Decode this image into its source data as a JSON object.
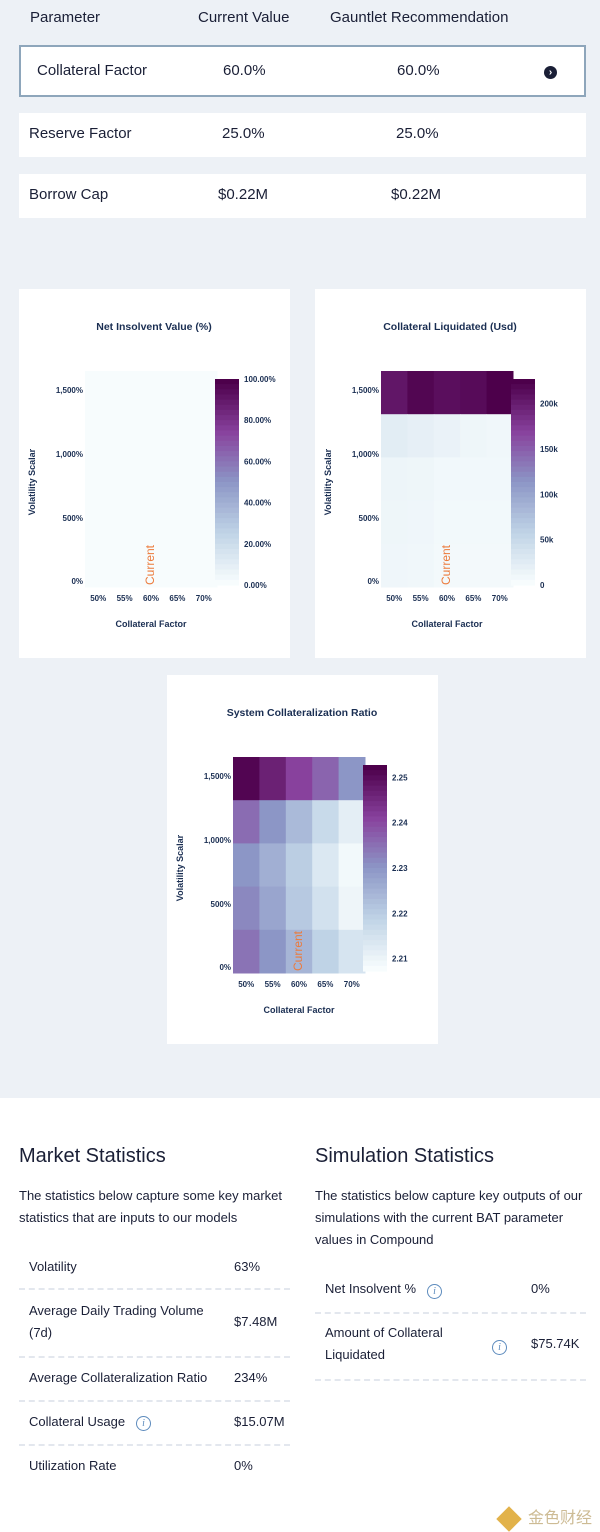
{
  "param_table": {
    "headers": [
      "Parameter",
      "Current Value",
      "Gauntlet Recommendation"
    ],
    "rows": [
      {
        "name": "Collateral Factor",
        "current": "60.0%",
        "recommended": "60.0%"
      },
      {
        "name": "Reserve Factor",
        "current": "25.0%",
        "recommended": "25.0%"
      },
      {
        "name": "Borrow Cap",
        "current": "$0.22M",
        "recommended": "$0.22M"
      }
    ],
    "expand_icon": "chevron-right-icon"
  },
  "chart_data": [
    {
      "type": "heatmap",
      "title": "Net Insolvent Value (%)",
      "xlabel": "Collateral Factor",
      "ylabel": "Volatility Scalar",
      "x_ticks": [
        "50%",
        "55%",
        "60%",
        "65%",
        "70%"
      ],
      "y_ticks": [
        "0%",
        "500%",
        "1,000%",
        "1,500%"
      ],
      "colorbar_ticks": [
        "0.00%",
        "20.00%",
        "40.00%",
        "60.00%",
        "80.00%",
        "100.00%"
      ],
      "colorbar_range": [
        0,
        100
      ],
      "marker_label": "Current",
      "marker_x": "60%",
      "values": [
        [
          0,
          0,
          0,
          0,
          0
        ],
        [
          0,
          0,
          0,
          0,
          0
        ],
        [
          0,
          0,
          0,
          0,
          0
        ],
        [
          0,
          0,
          0,
          0,
          0
        ],
        [
          0,
          0,
          0,
          0,
          0
        ]
      ]
    },
    {
      "type": "heatmap",
      "title": "Collateral Liquidated (Usd)",
      "xlabel": "Collateral Factor",
      "ylabel": "Volatility Scalar",
      "x_ticks": [
        "50%",
        "55%",
        "60%",
        "65%",
        "70%"
      ],
      "y_ticks": [
        "0%",
        "500%",
        "1,000%",
        "1,500%"
      ],
      "colorbar_ticks": [
        "0",
        "50k",
        "100k",
        "150k",
        "200k"
      ],
      "colorbar_range": [
        0,
        235000
      ],
      "marker_label": "Current",
      "marker_x": "60%",
      "values": [
        [
          215000,
          230000,
          222000,
          225000,
          235000
        ],
        [
          22000,
          18000,
          14000,
          9000,
          7000
        ],
        [
          10000,
          9000,
          6000,
          6000,
          6000
        ],
        [
          9000,
          8000,
          5000,
          5000,
          5000
        ],
        [
          8000,
          7000,
          4000,
          4000,
          4000
        ]
      ]
    },
    {
      "type": "heatmap",
      "title": "System Collateralization Ratio",
      "xlabel": "Collateral Factor",
      "ylabel": "Volatility Scalar",
      "x_ticks": [
        "50%",
        "55%",
        "60%",
        "65%",
        "70%"
      ],
      "y_ticks": [
        "0%",
        "500%",
        "1,000%",
        "1,500%"
      ],
      "colorbar_ticks": [
        "2.21",
        "2.22",
        "2.23",
        "2.24",
        "2.25"
      ],
      "colorbar_range": [
        2.205,
        2.253
      ],
      "marker_label": "Current",
      "marker_x": "60%",
      "values": [
        [
          2.252,
          2.247,
          2.241,
          2.236,
          2.229
        ],
        [
          2.235,
          2.229,
          2.222,
          2.215,
          2.209
        ],
        [
          2.229,
          2.224,
          2.218,
          2.211,
          2.206
        ],
        [
          2.231,
          2.226,
          2.219,
          2.213,
          2.207
        ],
        [
          2.234,
          2.229,
          2.223,
          2.217,
          2.212
        ]
      ]
    }
  ],
  "market_stats": {
    "title": "Market Statistics",
    "description": "The statistics below capture some key market statistics that are inputs to our models",
    "rows": [
      {
        "label": "Volatility",
        "value": "63%"
      },
      {
        "label": "Average Daily Trading Volume (7d)",
        "value": "$7.48M"
      },
      {
        "label": "Average Collateralization Ratio",
        "value": "234%"
      },
      {
        "label": "Collateral Usage",
        "value": "$15.07M"
      },
      {
        "label": "Utilization Rate",
        "value": "0%"
      }
    ]
  },
  "sim_stats": {
    "title": "Simulation Statistics",
    "description": "The statistics below capture key outputs of our simulations with the current BAT parameter values in Compound",
    "rows": [
      {
        "label": "Net Insolvent %",
        "value": "0%"
      },
      {
        "label": "Amount of Collateral Liquidated",
        "value": "$75.74K"
      }
    ]
  },
  "info_glyph": "i",
  "colors": {
    "accent_orange": "#ec7a3b",
    "dark_text": "#1a1f36",
    "page_bg": "#edf1f6",
    "info_blue": "#5d8bbd"
  },
  "watermark": "金色财经"
}
